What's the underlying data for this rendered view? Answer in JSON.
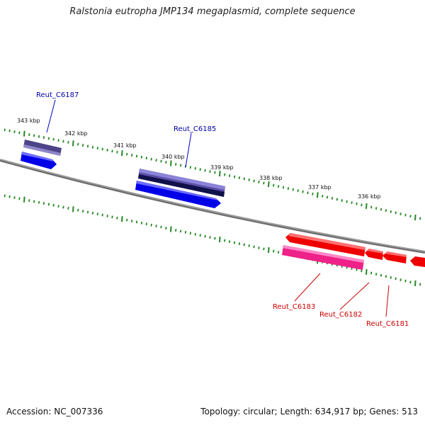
{
  "title": "Ralstonia eutropha JMP134 megaplasmid, complete sequence",
  "footer": {
    "accession": "Accession: NC_007336",
    "summary": "Topology: circular; Length: 634,917 bp; Genes: 513"
  },
  "ticks": [
    {
      "label": "343 kbp"
    },
    {
      "label": "342 kbp"
    },
    {
      "label": "341 kbp"
    },
    {
      "label": "340 kbp"
    },
    {
      "label": "339 kbp"
    },
    {
      "label": "338 kbp"
    },
    {
      "label": "337 kbp"
    },
    {
      "label": "336 kbp"
    }
  ],
  "genes": {
    "forward": [
      {
        "label": "Reut_C6187",
        "color": "#0000aa"
      },
      {
        "label": "Reut_C6185",
        "color": "#0000aa"
      }
    ],
    "reverse": [
      {
        "label": "Reut_C6183",
        "color": "#cc0000"
      },
      {
        "label": "Reut_C6182",
        "color": "#cc0000"
      },
      {
        "label": "Reut_C6181",
        "color": "#cc0000"
      }
    ]
  },
  "colors": {
    "backbone": "#777777",
    "tick": "#228822",
    "cds_forward": "#0000ee",
    "cds_reverse": "#ee0000",
    "orf_forward": "#5a4f9a",
    "orf_reverse": "#ee3399"
  }
}
